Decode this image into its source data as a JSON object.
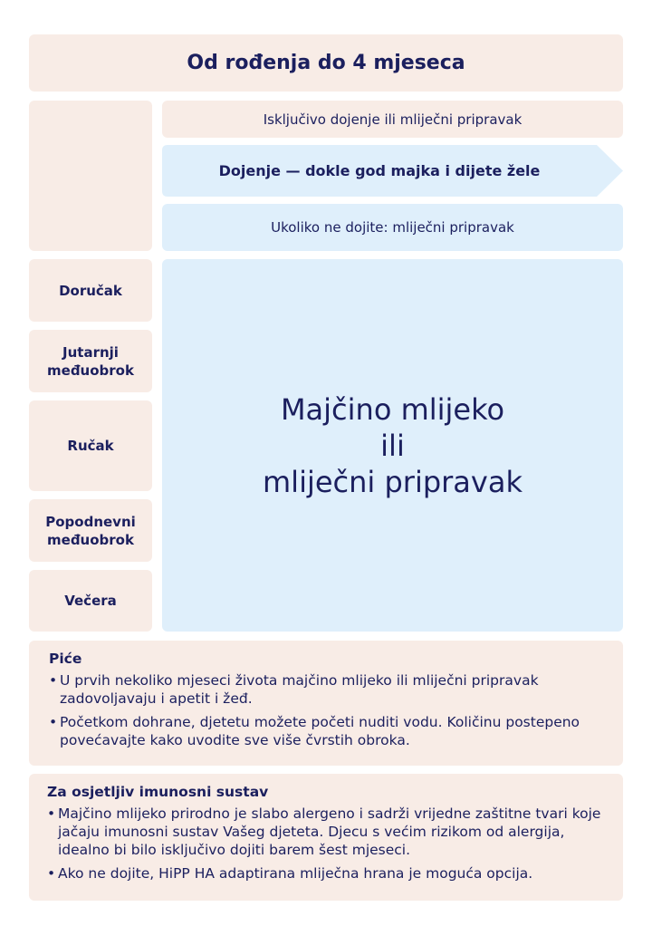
{
  "title": "Od rođenja do 4 mjeseca",
  "rows": {
    "exclusive": "Isključivo dojenje ili mliječni pripravak",
    "breastfeeding": "Dojenje — dokle god majka i dijete žele",
    "formula": "Ukoliko ne dojite: mliječni pripravak"
  },
  "meals": [
    "Doručak",
    "Jutarnji međuobrok",
    "Ručak",
    "Popodnevni međuobrok",
    "Večera"
  ],
  "main_text": [
    "Majčino mlijeko",
    "ili",
    "mliječni pripravak"
  ],
  "drinks": {
    "heading": "Piće",
    "items": [
      "U prvih nekoliko mjeseci života majčino mlijeko ili mliječni pripravak zadovoljavaju i apetit i žeđ.",
      "Početkom dohrane, djetetu možete početi nuditi vodu. Količinu postepeno povećavajte kako uvodite sve više čvrstih obroka."
    ]
  },
  "immune": {
    "heading": "Za osjetljiv imunosni sustav",
    "items": [
      "Majčino mlijeko prirodno je slabo alergeno i sadrži vrijedne zaštitne tvari koje jačaju imunosni sustav Vašeg djeteta. Djecu s većim rizikom od alergija, idealno bi bilo isključivo dojiti barem šest mjeseci.",
      "Ako ne dojite, HiPP HA adaptirana mliječna hrana je moguća opcija."
    ]
  },
  "colors": {
    "peach": "#f8ece6",
    "blue": "#dfeffb",
    "navy": "#1b1f5e"
  }
}
